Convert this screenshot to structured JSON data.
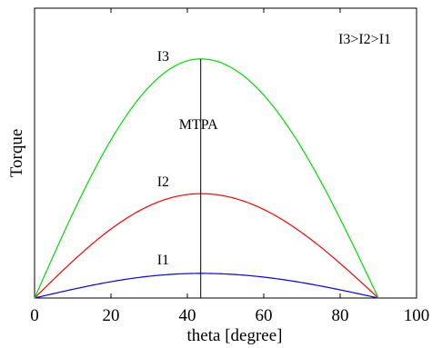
{
  "chart_data": {
    "type": "line",
    "xlabel": "theta [degree]",
    "ylabel": "Torque",
    "xlim": [
      0,
      100
    ],
    "xticks": [
      0,
      20,
      40,
      60,
      80,
      100
    ],
    "ylim": [
      0,
      1
    ],
    "yticks_shown": false,
    "grid": false,
    "legend_text": "I3>I2>I1",
    "mtpa_label": "MTPA",
    "mtpa_x": 43.5,
    "series": [
      {
        "name": "I1",
        "color": "#0000ff",
        "peak": 0.085,
        "x": [
          0,
          10,
          20,
          30,
          43.5,
          60,
          70,
          80,
          90
        ],
        "y": [
          0,
          0.03,
          0.055,
          0.073,
          0.085,
          0.076,
          0.06,
          0.036,
          0
        ]
      },
      {
        "name": "I2",
        "color": "#ff0000",
        "peak": 0.36,
        "x": [
          0,
          10,
          20,
          30,
          43.5,
          60,
          70,
          80,
          90
        ],
        "y": [
          0,
          0.126,
          0.233,
          0.309,
          0.36,
          0.322,
          0.254,
          0.153,
          0
        ]
      },
      {
        "name": "I3",
        "color": "#00dd00",
        "peak": 0.825,
        "x": [
          0,
          10,
          20,
          30,
          43.5,
          60,
          70,
          80,
          90
        ],
        "y": [
          0,
          0.289,
          0.534,
          0.708,
          0.825,
          0.737,
          0.582,
          0.35,
          0
        ]
      }
    ]
  }
}
